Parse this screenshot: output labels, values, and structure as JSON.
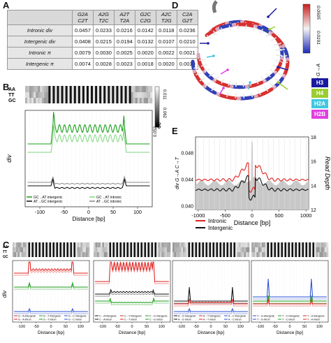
{
  "panels": {
    "A": "A",
    "B": "B",
    "C": "C",
    "D": "D",
    "E": "E"
  },
  "table": {
    "headers": [
      [
        "",
        ""
      ],
      [
        "G2A",
        "C2T"
      ],
      [
        "A2G",
        "T2C"
      ],
      [
        "A2T",
        "T2A"
      ],
      [
        "G2C",
        "C2G"
      ],
      [
        "A2C",
        "T2G"
      ],
      [
        "C2A",
        "G2T"
      ]
    ],
    "rows": [
      {
        "label": "Intronic div",
        "values": [
          "0.0457",
          "0.0233",
          "0.0216",
          "0.0142",
          "0.0118",
          "0.0236"
        ]
      },
      {
        "label": "Intergenic div",
        "values": [
          "0.0408",
          "0.0215",
          "0.0194",
          "0.0132",
          "0.0107",
          "0.0210"
        ]
      },
      {
        "label": "Intronic π",
        "values": [
          "0.0079",
          "0.0030",
          "0.0025",
          "0.0020",
          "0.0022",
          "0.0021"
        ]
      },
      {
        "label": "Intergenic π",
        "values": [
          "0.0074",
          "0.0028",
          "0.0023",
          "0.0018",
          "0.0020",
          "0.0019"
        ]
      }
    ]
  },
  "panelB": {
    "track_labels": [
      "AA",
      "TT",
      "GC"
    ],
    "ylabel": "div",
    "xlabel": "Distance [bp]",
    "xticks": [
      "-100",
      "-50",
      "0",
      "50",
      "100"
    ],
    "scale_labels": [
      "0.011",
      "0.062",
      "AA TT",
      "0.095",
      "0.052",
      "GC"
    ],
    "legend": [
      "GC→AT intergenic",
      "GC→AT intronic",
      "AT→GC intergenic",
      "AT→GC intronic"
    ],
    "colors": {
      "green_dark": "#1a9e1a",
      "green_light": "#7fd67f",
      "black": "#111111",
      "gray": "#888888"
    }
  },
  "panelC": {
    "ylabel": "div",
    "xlabel": "Distance [bp]",
    "xticks": [
      "-100",
      "-50",
      "0",
      "50",
      "100"
    ],
    "subplots": [
      {
        "legend": [
          "G→A intergenic",
          "G→T intergenic",
          "G→C intergenic",
          "G→A intron",
          "G→T intron",
          "G→C intron"
        ]
      },
      {
        "legend": [
          "C→A intergenic",
          "C→T intergenic",
          "C→G intergenic",
          "C→A intron",
          "C→T intron",
          "C→G intron"
        ]
      },
      {
        "legend": [
          "A→G intergenic",
          "A→T intergenic",
          "A→C intergenic",
          "A→G intron",
          "A→T intron",
          "A→C intron"
        ]
      },
      {
        "legend": [
          "T→G intergenic",
          "T→C intergenic",
          "T→A intergenic",
          "T→G intron",
          "T→C intron",
          "T→A intron"
        ]
      }
    ]
  },
  "panelD": {
    "scale_top": "0.0505",
    "scale_bottom": "0.0191",
    "scale_label": "div G→A",
    "histones": [
      {
        "name": "H3",
        "color": "#1a1aa0"
      },
      {
        "name": "H4",
        "color": "#9acd32"
      },
      {
        "name": "H2A",
        "color": "#40c8e0"
      },
      {
        "name": "H2B",
        "color": "#e040e0"
      }
    ]
  },
  "panelE": {
    "ylabel_left": "div G→A C→T",
    "ylabel_right": "Read Depth",
    "xlabel": "Distance [bp]",
    "xticks": [
      "-1000",
      "-500",
      "0",
      "500",
      "1000"
    ],
    "yticks_left": [
      "0.040",
      "0.044",
      "0.048"
    ],
    "yticks_right": [
      "12",
      "14",
      "16",
      "18"
    ],
    "legend": [
      "Intronic",
      "Intergenic"
    ],
    "colors": {
      "intronic": "#e0201e",
      "intergenic": "#111111",
      "depth": "#c8c8c8"
    }
  }
}
